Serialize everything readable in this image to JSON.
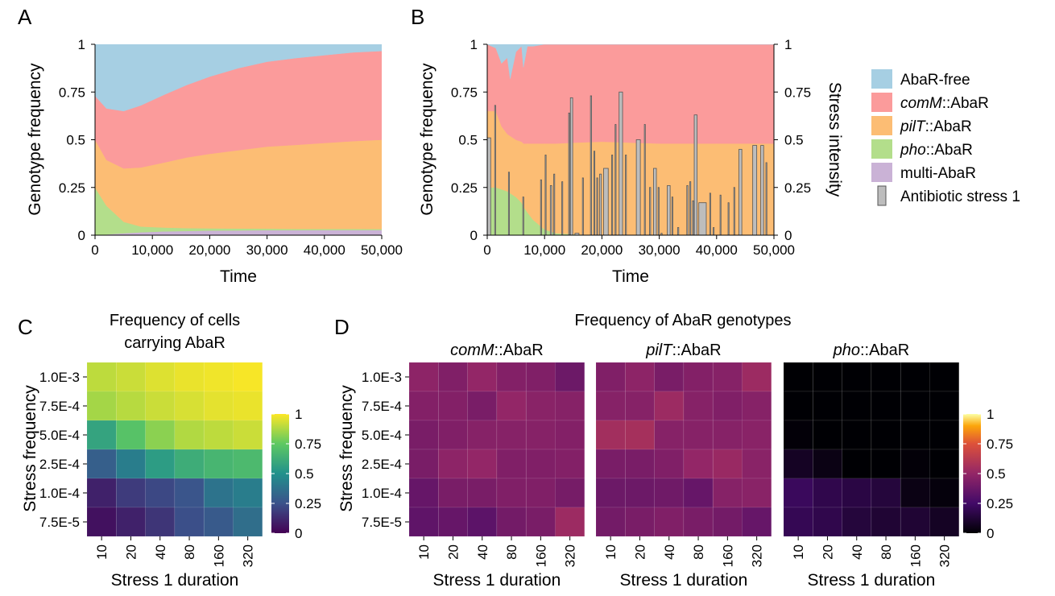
{
  "panel_labels": {
    "a": "A",
    "b": "B",
    "c": "C",
    "d": "D"
  },
  "legend": [
    {
      "label": "AbaR-free",
      "color": "#a6cfe3"
    },
    {
      "label_italic": "comM",
      "label_rest": "::AbaR",
      "color": "#fb9b9b"
    },
    {
      "label_italic": "pilT",
      "label_rest": "::AbaR",
      "color": "#fcbd74"
    },
    {
      "label_italic": "pho",
      "label_rest": "::AbaR",
      "color": "#b3de8b"
    },
    {
      "label": "multi-AbaR",
      "color": "#cab2d6"
    },
    {
      "label": "Antibiotic stress 1",
      "color": "#bdbdbd"
    }
  ],
  "chart_data": [
    {
      "id": "A",
      "type": "area",
      "stacked": true,
      "xlabel": "Time",
      "ylabel": "Genotype frequency",
      "xlim": [
        0,
        50000
      ],
      "ylim": [
        0,
        1
      ],
      "xticks": [
        "0",
        "10,000",
        "20,000",
        "30,000",
        "40,000",
        "50,000"
      ],
      "yticks": [
        "0",
        "0.25",
        "0.5",
        "0.75",
        "1"
      ],
      "x": [
        0,
        2000,
        5000,
        8000,
        12000,
        16000,
        20000,
        25000,
        30000,
        35000,
        40000,
        45000,
        50000
      ],
      "series": [
        {
          "name": "multi-AbaR",
          "color": "#cab2d6",
          "values": [
            0.0,
            0.004,
            0.01,
            0.015,
            0.02,
            0.022,
            0.024,
            0.025,
            0.026,
            0.026,
            0.027,
            0.027,
            0.027
          ]
        },
        {
          "name": "pho::AbaR",
          "color": "#b3de8b",
          "values": [
            0.25,
            0.15,
            0.06,
            0.03,
            0.02,
            0.015,
            0.012,
            0.01,
            0.008,
            0.007,
            0.006,
            0.006,
            0.005
          ]
        },
        {
          "name": "pilT::AbaR",
          "color": "#fcbd74",
          "values": [
            0.25,
            0.24,
            0.28,
            0.31,
            0.34,
            0.37,
            0.39,
            0.41,
            0.43,
            0.44,
            0.45,
            0.46,
            0.468
          ]
        },
        {
          "name": "comM::AbaR",
          "color": "#fb9b9b",
          "values": [
            0.23,
            0.27,
            0.3,
            0.325,
            0.355,
            0.38,
            0.405,
            0.43,
            0.445,
            0.455,
            0.46,
            0.465,
            0.465
          ]
        },
        {
          "name": "AbaR-free",
          "color": "#a6cfe3",
          "values": [
            0.27,
            0.336,
            0.35,
            0.32,
            0.265,
            0.213,
            0.169,
            0.125,
            0.091,
            0.072,
            0.057,
            0.042,
            0.035
          ]
        }
      ]
    },
    {
      "id": "B",
      "type": "area",
      "stacked": true,
      "xlabel": "Time",
      "ylabel": "Genotype frequency",
      "y2label": "Stress intensity",
      "xlim": [
        0,
        50000
      ],
      "ylim": [
        0,
        1
      ],
      "xticks": [
        "0",
        "10,000",
        "20,000",
        "30,000",
        "40,000",
        "50,000"
      ],
      "yticks": [
        "0",
        "0.25",
        "0.5",
        "0.75",
        "1"
      ],
      "x": [
        0,
        1500,
        2500,
        3500,
        4000,
        5000,
        6000,
        6300,
        7000,
        8000,
        10000,
        12000,
        15000,
        20000,
        30000,
        40000,
        50000
      ],
      "series": [
        {
          "name": "multi-AbaR",
          "color": "#cab2d6",
          "values": [
            0.0,
            0.0,
            0.0,
            0.0,
            0.0,
            0.0,
            0.0,
            0.0,
            0.0,
            0.0,
            0.0,
            0.0,
            0.0,
            0.0,
            0.0,
            0.0,
            0.0
          ]
        },
        {
          "name": "pho::AbaR",
          "color": "#b3de8b",
          "values": [
            0.25,
            0.25,
            0.24,
            0.23,
            0.22,
            0.2,
            0.17,
            0.15,
            0.12,
            0.08,
            0.03,
            0.01,
            0.005,
            0.0,
            0.0,
            0.0,
            0.0
          ]
        },
        {
          "name": "pilT::AbaR",
          "color": "#fcbd74",
          "values": [
            0.4,
            0.4,
            0.33,
            0.3,
            0.3,
            0.3,
            0.32,
            0.33,
            0.36,
            0.4,
            0.45,
            0.47,
            0.48,
            0.49,
            0.48,
            0.48,
            0.48
          ]
        },
        {
          "name": "comM::AbaR",
          "color": "#fb9b9b",
          "values": [
            0.35,
            0.33,
            0.33,
            0.4,
            0.3,
            0.46,
            0.5,
            0.4,
            0.51,
            0.51,
            0.52,
            0.52,
            0.515,
            0.51,
            0.52,
            0.52,
            0.52
          ]
        },
        {
          "name": "AbaR-free",
          "color": "#a6cfe3",
          "values": [
            0.0,
            0.02,
            0.1,
            0.07,
            0.18,
            0.04,
            0.01,
            0.12,
            0.01,
            0.01,
            0.0,
            0.0,
            0.0,
            0.0,
            0.0,
            0.0,
            0.0
          ]
        }
      ],
      "stress_series": {
        "name": "Antibiotic stress 1",
        "color": "#bdbdbd",
        "pulses": [
          {
            "t": 0,
            "w": 600,
            "v": 0.51
          },
          {
            "t": 1300,
            "w": 80,
            "v": 0.68
          },
          {
            "t": 3700,
            "w": 150,
            "v": 0.33
          },
          {
            "t": 6200,
            "w": 80,
            "v": 0.2
          },
          {
            "t": 9300,
            "w": 80,
            "v": 0.29
          },
          {
            "t": 10100,
            "w": 100,
            "v": 0.42
          },
          {
            "t": 11000,
            "w": 250,
            "v": 0.26
          },
          {
            "t": 11600,
            "w": 80,
            "v": 0.32
          },
          {
            "t": 13000,
            "w": 80,
            "v": 0.28
          },
          {
            "t": 14200,
            "w": 100,
            "v": 0.64
          },
          {
            "t": 14500,
            "w": 400,
            "v": 0.72
          },
          {
            "t": 15300,
            "w": 700,
            "v": 0.01
          },
          {
            "t": 16600,
            "w": 80,
            "v": 0.3
          },
          {
            "t": 18000,
            "w": 200,
            "v": 0.73
          },
          {
            "t": 18600,
            "w": 100,
            "v": 0.44
          },
          {
            "t": 19100,
            "w": 100,
            "v": 0.3
          },
          {
            "t": 19600,
            "w": 300,
            "v": 0.32
          },
          {
            "t": 20300,
            "w": 800,
            "v": 0.35
          },
          {
            "t": 21700,
            "w": 100,
            "v": 0.42
          },
          {
            "t": 22300,
            "w": 80,
            "v": 0.58
          },
          {
            "t": 23000,
            "w": 600,
            "v": 0.75
          },
          {
            "t": 24100,
            "w": 80,
            "v": 0.42
          },
          {
            "t": 26000,
            "w": 700,
            "v": 0.5
          },
          {
            "t": 27400,
            "w": 100,
            "v": 0.58
          },
          {
            "t": 28300,
            "w": 200,
            "v": 0.25
          },
          {
            "t": 29000,
            "w": 500,
            "v": 0.35
          },
          {
            "t": 29800,
            "w": 100,
            "v": 0.25
          },
          {
            "t": 30300,
            "w": 200,
            "v": 0.01
          },
          {
            "t": 31400,
            "w": 500,
            "v": 0.26
          },
          {
            "t": 32200,
            "w": 100,
            "v": 0.2
          },
          {
            "t": 33200,
            "w": 200,
            "v": 0.04
          },
          {
            "t": 34800,
            "w": 200,
            "v": 0.26
          },
          {
            "t": 35300,
            "w": 200,
            "v": 0.28
          },
          {
            "t": 35800,
            "w": 200,
            "v": 0.18
          },
          {
            "t": 36100,
            "w": 500,
            "v": 0.63
          },
          {
            "t": 36900,
            "w": 1300,
            "v": 0.17
          },
          {
            "t": 38800,
            "w": 100,
            "v": 0.22
          },
          {
            "t": 39400,
            "w": 80,
            "v": 0.04
          },
          {
            "t": 40600,
            "w": 80,
            "v": 0.21
          },
          {
            "t": 42000,
            "w": 80,
            "v": 0.17
          },
          {
            "t": 43000,
            "w": 80,
            "v": 0.25
          },
          {
            "t": 43900,
            "w": 500,
            "v": 0.45
          },
          {
            "t": 46300,
            "w": 700,
            "v": 0.47
          },
          {
            "t": 47700,
            "w": 500,
            "v": 0.47
          },
          {
            "t": 48600,
            "w": 150,
            "v": 0.38
          }
        ]
      },
      "y2ticks": [
        "0",
        "0.25",
        "0.5",
        "0.75",
        "1"
      ]
    },
    {
      "id": "C",
      "type": "heatmap",
      "title": [
        "Frequency of cells",
        "carrying AbaR"
      ],
      "xlabel": "Stress 1 duration",
      "ylabel": "Stress frequency",
      "xcategories": [
        "10",
        "20",
        "40",
        "80",
        "160",
        "320"
      ],
      "ycategories": [
        "1.0E-3",
        "7.5E-4",
        "5.0E-4",
        "2.5E-4",
        "1.0E-4",
        "7.5E-5"
      ],
      "colormap": "viridis",
      "colorbar_ticks": [
        "0",
        "0.25",
        "0.5",
        "0.75",
        "1"
      ],
      "values": [
        [
          0.9,
          0.92,
          0.95,
          0.97,
          0.98,
          0.99
        ],
        [
          0.86,
          0.89,
          0.92,
          0.94,
          0.96,
          0.97
        ],
        [
          0.58,
          0.72,
          0.82,
          0.88,
          0.9,
          0.92
        ],
        [
          0.3,
          0.42,
          0.55,
          0.62,
          0.66,
          0.68
        ],
        [
          0.1,
          0.18,
          0.22,
          0.26,
          0.38,
          0.42
        ],
        [
          0.05,
          0.1,
          0.16,
          0.24,
          0.28,
          0.36
        ]
      ]
    },
    {
      "id": "D",
      "type": "heatmap",
      "title": "Frequency of AbaR genotypes",
      "xlabel": "Stress 1 duration",
      "ylabel": "Stress frequency",
      "colormap": "inferno",
      "colorbar_ticks": [
        "0",
        "0.25",
        "0.5",
        "0.75",
        "1"
      ],
      "xcategories": [
        "10",
        "20",
        "40",
        "80",
        "160",
        "320"
      ],
      "ycategories": [
        "1.0E-3",
        "7.5E-4",
        "5.0E-4",
        "2.5E-4",
        "1.0E-4",
        "7.5E-5"
      ],
      "panels": [
        {
          "title_italic": "comM",
          "title_rest": "::AbaR",
          "values": [
            [
              0.48,
              0.44,
              0.5,
              0.45,
              0.44,
              0.38
            ],
            [
              0.45,
              0.45,
              0.42,
              0.5,
              0.47,
              0.46
            ],
            [
              0.42,
              0.44,
              0.46,
              0.46,
              0.46,
              0.45
            ],
            [
              0.42,
              0.48,
              0.5,
              0.44,
              0.44,
              0.45
            ],
            [
              0.36,
              0.42,
              0.42,
              0.44,
              0.44,
              0.41
            ],
            [
              0.34,
              0.36,
              0.33,
              0.4,
              0.42,
              0.53
            ]
          ]
        },
        {
          "title_italic": "pilT",
          "title_rest": "::AbaR",
          "values": [
            [
              0.44,
              0.48,
              0.42,
              0.45,
              0.46,
              0.53
            ],
            [
              0.46,
              0.46,
              0.53,
              0.46,
              0.44,
              0.46
            ],
            [
              0.55,
              0.56,
              0.46,
              0.46,
              0.46,
              0.47
            ],
            [
              0.42,
              0.42,
              0.44,
              0.5,
              0.52,
              0.47
            ],
            [
              0.38,
              0.38,
              0.39,
              0.36,
              0.46,
              0.47
            ],
            [
              0.4,
              0.42,
              0.44,
              0.42,
              0.4,
              0.36
            ]
          ]
        },
        {
          "title_italic": "pho",
          "title_rest": "::AbaR",
          "values": [
            [
              0.0,
              0.0,
              0.0,
              0.0,
              0.0,
              0.0
            ],
            [
              0.0,
              0.0,
              0.0,
              0.0,
              0.0,
              0.0
            ],
            [
              0.01,
              0.0,
              0.0,
              0.0,
              0.0,
              0.0
            ],
            [
              0.08,
              0.04,
              0.0,
              0.0,
              0.01,
              0.0
            ],
            [
              0.22,
              0.18,
              0.16,
              0.14,
              0.04,
              0.02
            ],
            [
              0.2,
              0.18,
              0.14,
              0.12,
              0.12,
              0.08
            ]
          ]
        }
      ]
    }
  ]
}
